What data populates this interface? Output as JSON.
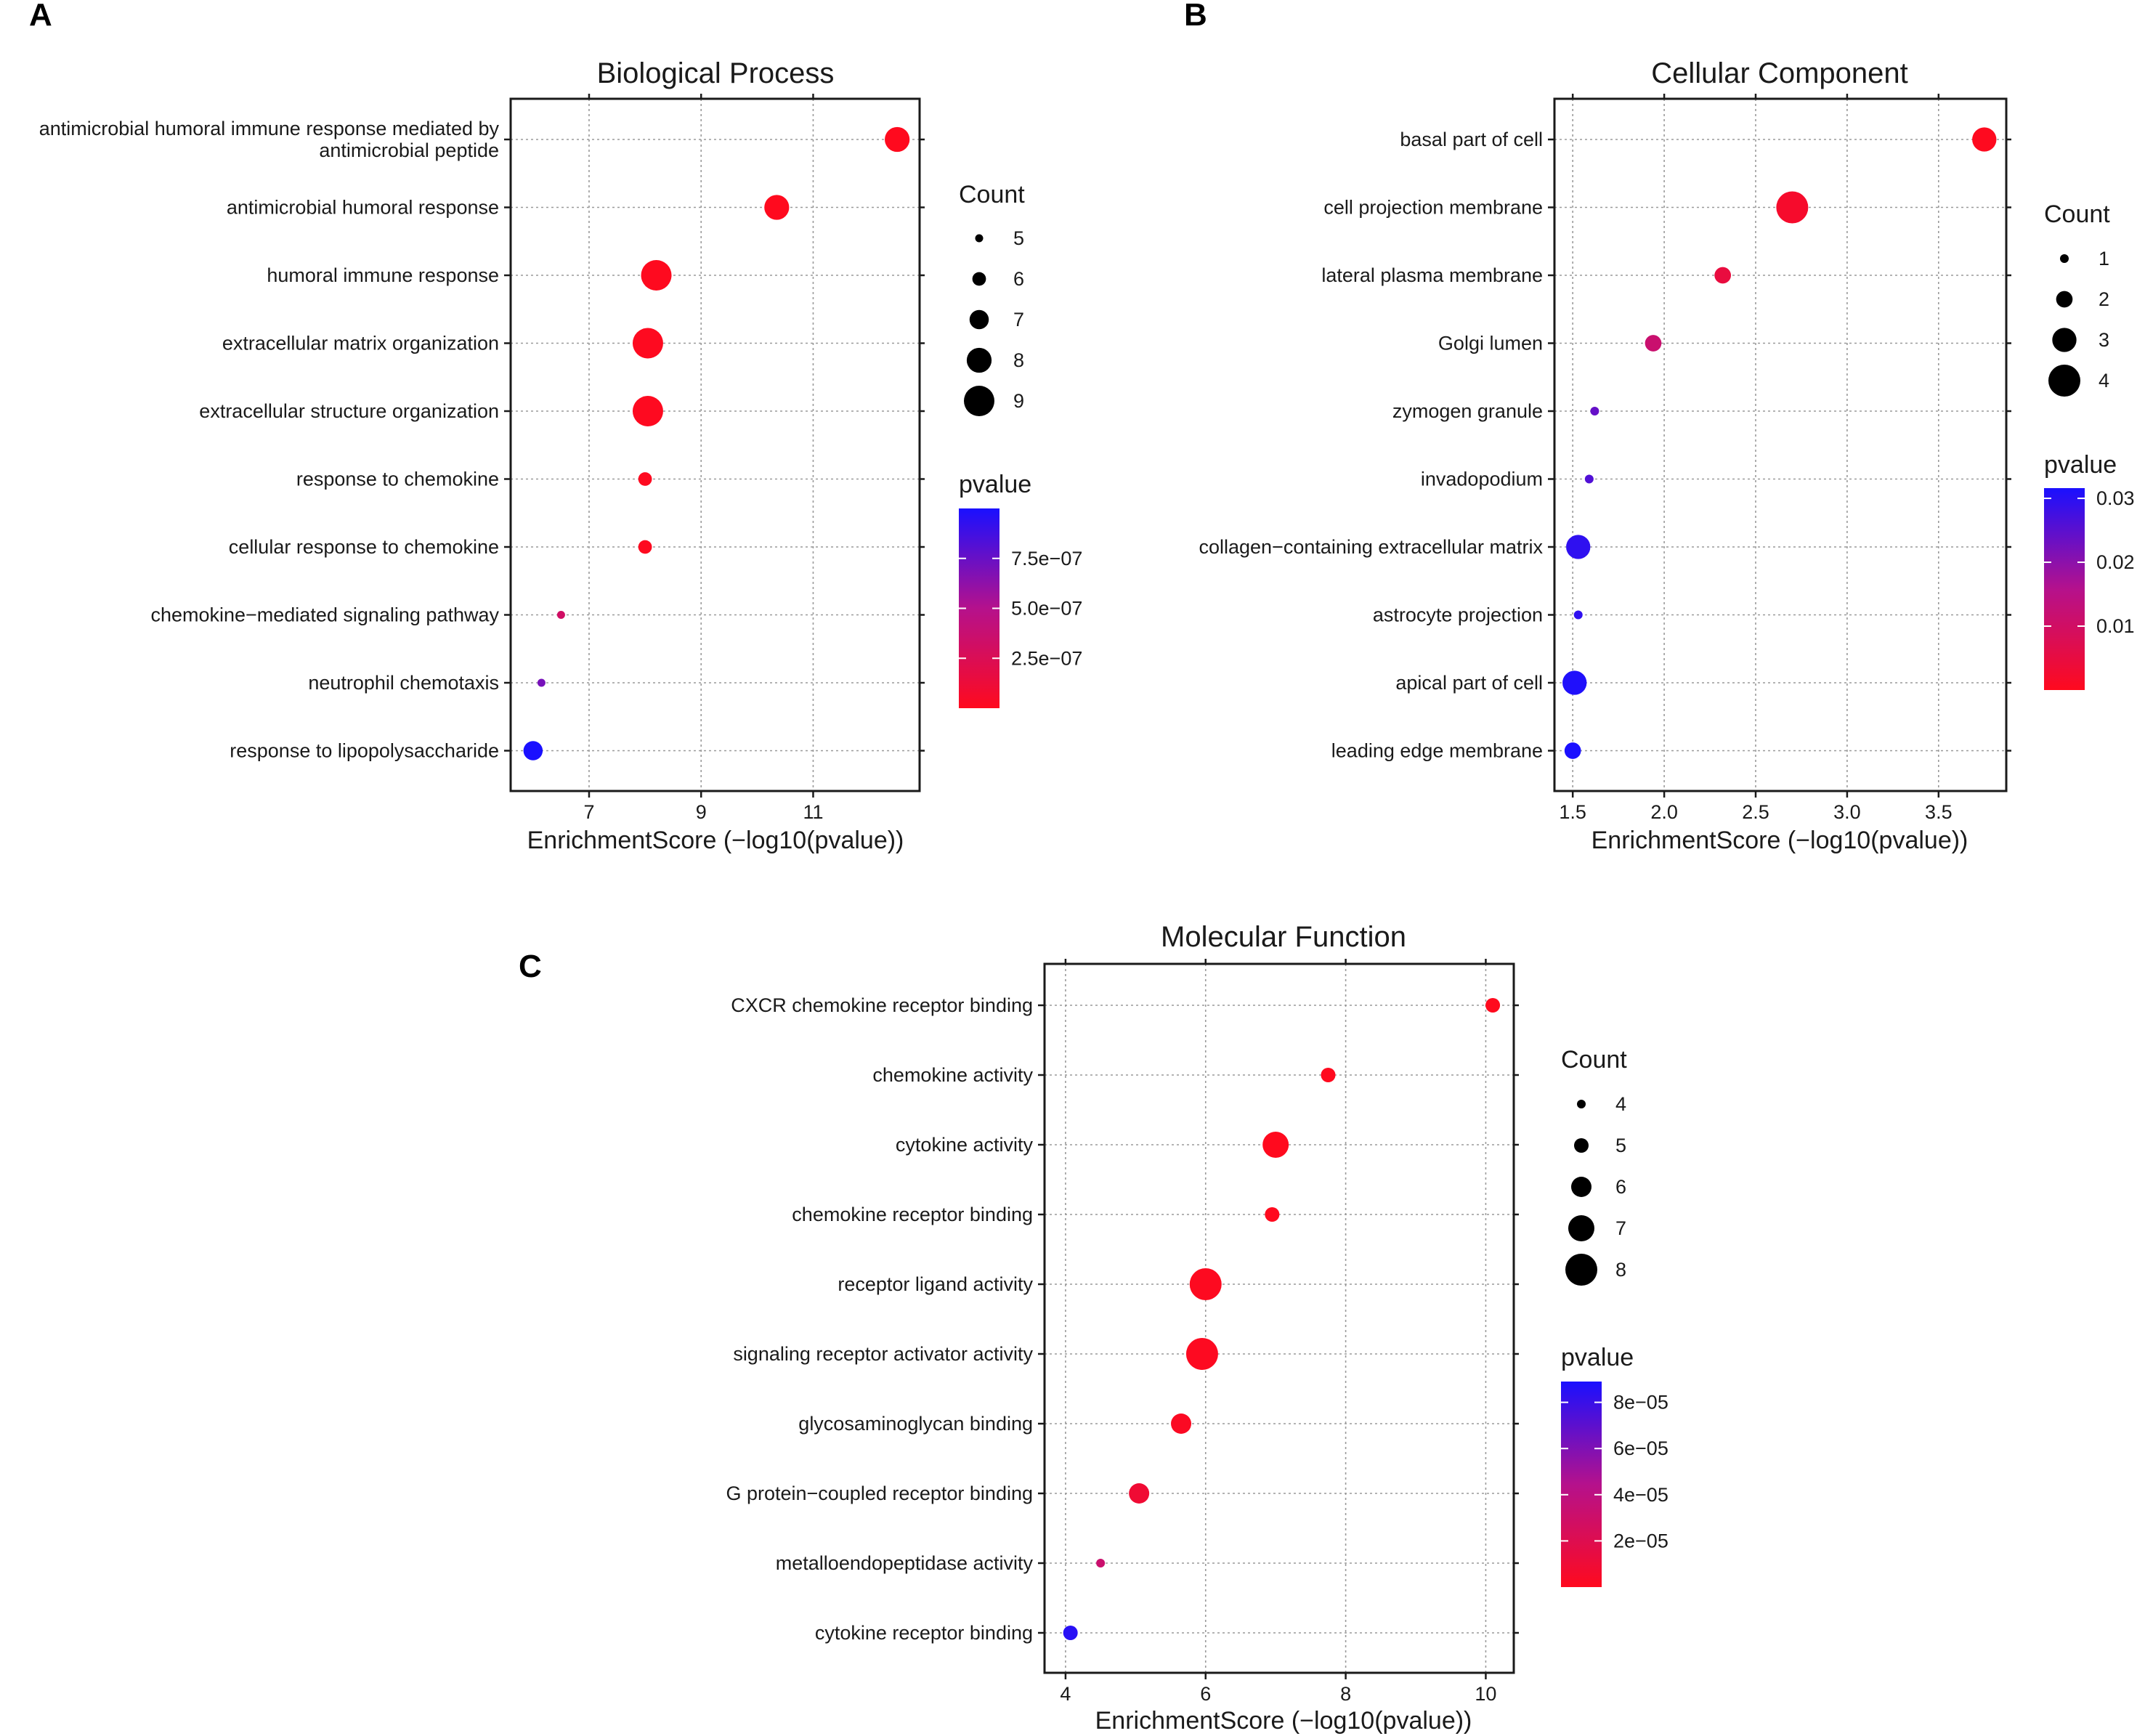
{
  "figure": {
    "panels": [
      "A",
      "B",
      "C"
    ]
  },
  "colors": {
    "low": "#ff0a1e",
    "mid": "#b5118c",
    "high": "#1a10ff",
    "grid": "#9a9a9a",
    "axis": "#1a1a1a"
  },
  "chart_data": [
    {
      "type": "scatter",
      "panel": "A",
      "title": "Biological Process",
      "xlabel": "EnrichmentScore (−log10(pvalue))",
      "xlim": [
        5.6,
        12.9
      ],
      "xticks": [
        7,
        9,
        11
      ],
      "xtick_labels": [
        "7",
        "9",
        "11"
      ],
      "terms": [
        {
          "label_lines": [
            "antimicrobial humoral immune response mediated by",
            "antimicrobial peptide"
          ],
          "x": 12.5,
          "count": 8,
          "pvalue": 3.2e-13
        },
        {
          "label_lines": [
            "antimicrobial humoral response"
          ],
          "x": 10.35,
          "count": 8,
          "pvalue": 4.5e-11
        },
        {
          "label_lines": [
            "humoral immune response"
          ],
          "x": 8.2,
          "count": 9,
          "pvalue": 6.3e-09
        },
        {
          "label_lines": [
            "extracellular matrix organization"
          ],
          "x": 8.05,
          "count": 9,
          "pvalue": 8.9e-09
        },
        {
          "label_lines": [
            "extracellular structure organization"
          ],
          "x": 8.05,
          "count": 9,
          "pvalue": 8.9e-09
        },
        {
          "label_lines": [
            "response to chemokine"
          ],
          "x": 8.0,
          "count": 6,
          "pvalue": 1e-08
        },
        {
          "label_lines": [
            "cellular response to chemokine"
          ],
          "x": 8.0,
          "count": 6,
          "pvalue": 1e-08
        },
        {
          "label_lines": [
            "chemokine−mediated signaling pathway"
          ],
          "x": 6.5,
          "count": 5,
          "pvalue": 3.2e-07
        },
        {
          "label_lines": [
            "neutrophil chemotaxis"
          ],
          "x": 6.15,
          "count": 5,
          "pvalue": 7e-07
        },
        {
          "label_lines": [
            "response to lipopolysaccharide"
          ],
          "x": 6.0,
          "count": 7,
          "pvalue": 1e-06
        }
      ],
      "count_legend": {
        "title": "Count",
        "levels": [
          5,
          6,
          7,
          8,
          9
        ],
        "labels": [
          "5",
          "6",
          "7",
          "8",
          "9"
        ]
      },
      "pvalue_legend": {
        "title": "pvalue",
        "range": [
          0,
          1e-06
        ],
        "ticks": [
          7.5e-07,
          5e-07,
          2.5e-07
        ],
        "tick_labels": [
          "7.5e−07",
          "5.0e−07",
          "2.5e−07"
        ]
      }
    },
    {
      "type": "scatter",
      "panel": "B",
      "title": "Cellular Component",
      "xlabel": "EnrichmentScore (−log10(pvalue))",
      "xlim": [
        1.4,
        3.87
      ],
      "xticks": [
        1.5,
        2.0,
        2.5,
        3.0,
        3.5
      ],
      "xtick_labels": [
        "1.5",
        "2.0",
        "2.5",
        "3.0",
        "3.5"
      ],
      "terms": [
        {
          "label_lines": [
            "basal part of cell"
          ],
          "x": 3.75,
          "count": 3,
          "pvalue": 0.0002
        },
        {
          "label_lines": [
            "cell projection membrane"
          ],
          "x": 2.7,
          "count": 4,
          "pvalue": 0.002
        },
        {
          "label_lines": [
            "lateral plasma membrane"
          ],
          "x": 2.32,
          "count": 2,
          "pvalue": 0.0048
        },
        {
          "label_lines": [
            "Golgi lumen"
          ],
          "x": 1.94,
          "count": 2,
          "pvalue": 0.0115
        },
        {
          "label_lines": [
            "zymogen granule"
          ],
          "x": 1.62,
          "count": 1,
          "pvalue": 0.024
        },
        {
          "label_lines": [
            "invadopodium"
          ],
          "x": 1.59,
          "count": 1,
          "pvalue": 0.026
        },
        {
          "label_lines": [
            "collagen−containing extracellular matrix"
          ],
          "x": 1.53,
          "count": 3,
          "pvalue": 0.0295
        },
        {
          "label_lines": [
            "astrocyte projection"
          ],
          "x": 1.53,
          "count": 1,
          "pvalue": 0.0295
        },
        {
          "label_lines": [
            "apical part of cell"
          ],
          "x": 1.51,
          "count": 3,
          "pvalue": 0.031
        },
        {
          "label_lines": [
            "leading edge membrane"
          ],
          "x": 1.5,
          "count": 2,
          "pvalue": 0.0316
        }
      ],
      "count_legend": {
        "title": "Count",
        "levels": [
          1,
          2,
          3,
          4
        ],
        "labels": [
          "1",
          "2",
          "3",
          "4"
        ]
      },
      "pvalue_legend": {
        "title": "pvalue",
        "range": [
          0,
          0.0316
        ],
        "ticks": [
          0.03,
          0.02,
          0.01
        ],
        "tick_labels": [
          "0.03",
          "0.02",
          "0.01"
        ]
      }
    },
    {
      "type": "scatter",
      "panel": "C",
      "title": "Molecular Function",
      "xlabel": "EnrichmentScore (−log10(pvalue))",
      "xlim": [
        3.7,
        10.4
      ],
      "xticks": [
        4,
        6,
        8,
        10
      ],
      "xtick_labels": [
        "4",
        "6",
        "8",
        "10"
      ],
      "terms": [
        {
          "label_lines": [
            "CXCR chemokine receptor binding"
          ],
          "x": 10.1,
          "count": 5,
          "pvalue": 7.9e-11
        },
        {
          "label_lines": [
            "chemokine activity"
          ],
          "x": 7.75,
          "count": 5,
          "pvalue": 1.8e-08
        },
        {
          "label_lines": [
            "cytokine activity"
          ],
          "x": 7.0,
          "count": 7,
          "pvalue": 1e-07
        },
        {
          "label_lines": [
            "chemokine receptor binding"
          ],
          "x": 6.95,
          "count": 5,
          "pvalue": 1.1e-07
        },
        {
          "label_lines": [
            "receptor ligand activity"
          ],
          "x": 6.0,
          "count": 8,
          "pvalue": 1e-06
        },
        {
          "label_lines": [
            "signaling receptor activator activity"
          ],
          "x": 5.95,
          "count": 8,
          "pvalue": 1.1e-06
        },
        {
          "label_lines": [
            "glycosaminoglycan binding"
          ],
          "x": 5.65,
          "count": 6,
          "pvalue": 2.2e-06
        },
        {
          "label_lines": [
            "G protein−coupled receptor binding"
          ],
          "x": 5.05,
          "count": 6,
          "pvalue": 8.9e-06
        },
        {
          "label_lines": [
            "metalloendopeptidase activity"
          ],
          "x": 4.5,
          "count": 4,
          "pvalue": 3.2e-05
        },
        {
          "label_lines": [
            "cytokine receptor binding"
          ],
          "x": 4.07,
          "count": 5,
          "pvalue": 8.5e-05
        }
      ],
      "count_legend": {
        "title": "Count",
        "levels": [
          4,
          5,
          6,
          7,
          8
        ],
        "labels": [
          "4",
          "5",
          "6",
          "7",
          "8"
        ]
      },
      "pvalue_legend": {
        "title": "pvalue",
        "range": [
          0,
          8.9e-05
        ],
        "ticks": [
          8e-05,
          6e-05,
          4e-05,
          2e-05
        ],
        "tick_labels": [
          "8e−05",
          "6e−05",
          "4e−05",
          "2e−05"
        ]
      }
    }
  ]
}
